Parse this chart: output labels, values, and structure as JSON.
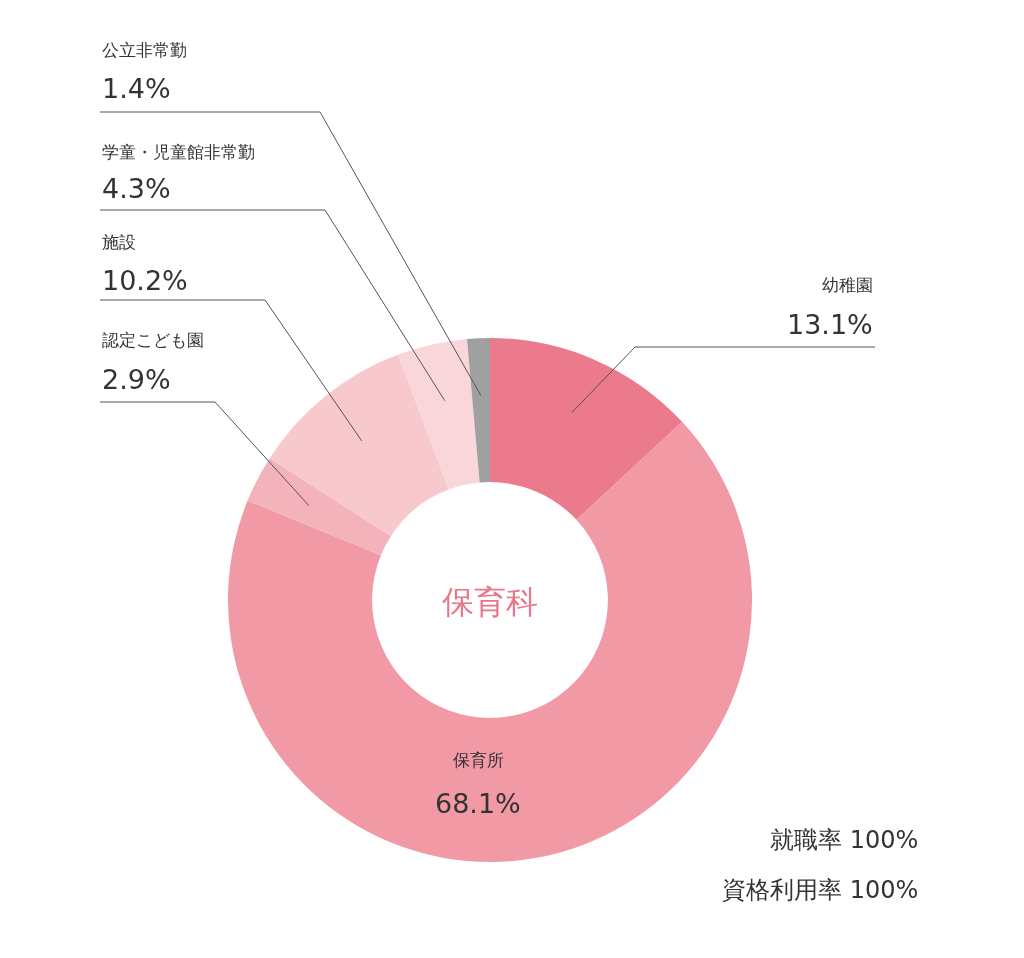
{
  "chart_data": {
    "type": "donut",
    "title": "保育科",
    "categories": [
      "幼稚園",
      "保育所",
      "認定こども園",
      "施設",
      "学童・児童館非常勤",
      "公立非常勤"
    ],
    "values": [
      13.1,
      68.1,
      2.9,
      10.2,
      4.3,
      1.4
    ],
    "value_labels": [
      "13.1%",
      "68.1%",
      "2.9%",
      "10.2%",
      "4.3%",
      "1.4%"
    ],
    "colors": [
      "#eb7a8d",
      "#f199a5",
      "#f4b3ba",
      "#f7c8cc",
      "#f9d6da",
      "#a0a0a0"
    ],
    "annotations": [
      "就職率 100%",
      "資格利用率 100%"
    ]
  }
}
